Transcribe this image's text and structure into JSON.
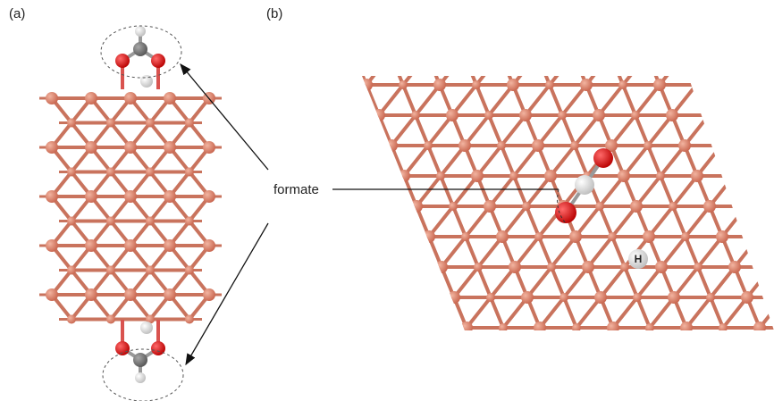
{
  "panels": [
    {
      "label": "(a)"
    },
    {
      "label": "(b)"
    }
  ],
  "annotation": "formate",
  "atom_label": "H"
}
